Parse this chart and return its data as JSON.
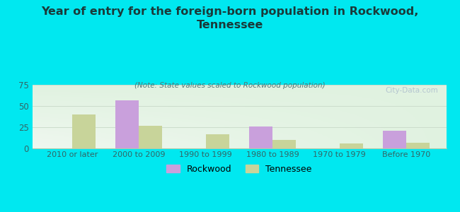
{
  "title": "Year of entry for the foreign-born population in Rockwood,\nTennessee",
  "subtitle": "(Note: State values scaled to Rockwood population)",
  "categories": [
    "2010 or later",
    "2000 to 2009",
    "1990 to 1999",
    "1980 to 1989",
    "1970 to 1979",
    "Before 1970"
  ],
  "rockwood": [
    0,
    57,
    0,
    26,
    0,
    21
  ],
  "tennessee": [
    40,
    27,
    17,
    10,
    6,
    7
  ],
  "rockwood_color": "#c9a0dc",
  "tennessee_color": "#c8d49a",
  "background_color": "#00e8f0",
  "ylim": [
    0,
    75
  ],
  "yticks": [
    0,
    25,
    50,
    75
  ],
  "bar_width": 0.35,
  "watermark": "City-Data.com",
  "legend_rockwood": "Rockwood",
  "legend_tennessee": "Tennessee"
}
